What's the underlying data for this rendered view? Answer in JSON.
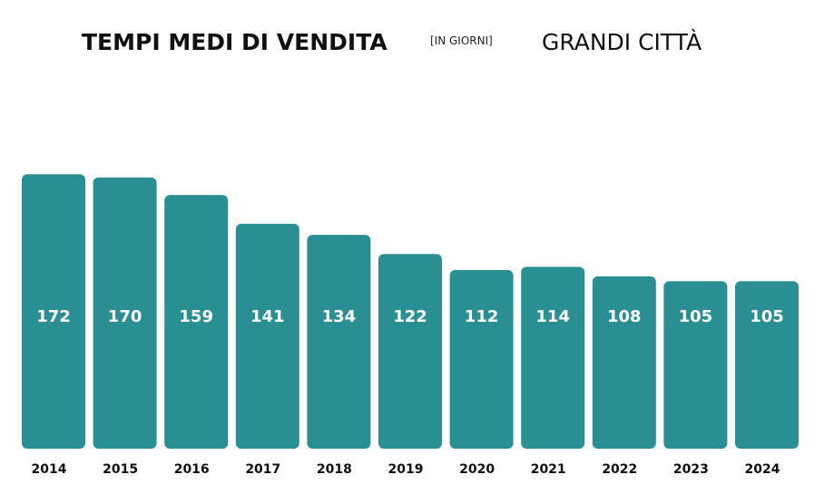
{
  "chart_data": {
    "type": "bar",
    "title": "TEMPI MEDI DI VENDITA",
    "subtitle": "[IN GIORNI]",
    "annotation": "GRANDI CITTÀ",
    "categories": [
      "2014",
      "2015",
      "2016",
      "2017",
      "2018",
      "2019",
      "2020",
      "2021",
      "2022",
      "2023",
      "2024"
    ],
    "values": [
      172,
      170,
      159,
      141,
      134,
      122,
      112,
      114,
      108,
      105,
      105
    ],
    "color": "#2a8f92"
  }
}
